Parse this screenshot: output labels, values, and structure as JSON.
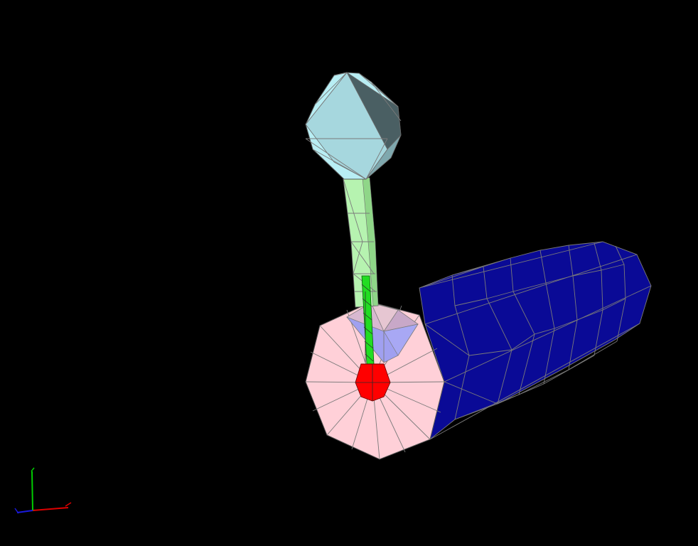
{
  "scene": {
    "background": "#000000",
    "parts": [
      {
        "id": "tube",
        "shape": "decagonal-prism",
        "color": "#0a0a96"
      },
      {
        "id": "tube-end-cap",
        "shape": "decagon-fan",
        "color": "#ffd0d8"
      },
      {
        "id": "inner-cone",
        "shape": "cone",
        "color": "#a0a0f0"
      },
      {
        "id": "center-node",
        "shape": "octagon",
        "color": "#ff0000"
      },
      {
        "id": "thin-rod",
        "shape": "thin-cylinder",
        "color": "#22dd22"
      },
      {
        "id": "stem",
        "shape": "cylinder",
        "color": "#b6f3b0"
      },
      {
        "id": "head",
        "shape": "polyhedron",
        "color": "#b8eef4"
      }
    ],
    "axes": {
      "x_color": "#dd0000",
      "y_color": "#00cc00",
      "z_color": "#1a1add"
    }
  }
}
